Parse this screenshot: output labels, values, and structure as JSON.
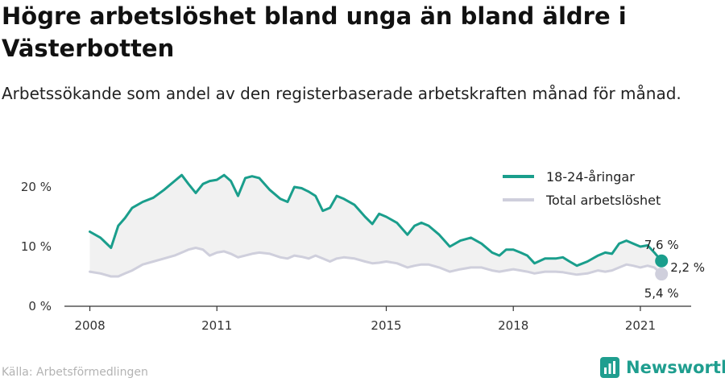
{
  "title": "Högre arbetslöshet bland unga än bland äldre i Västerbotten",
  "subtitle": "Arbetssökande som andel av den registerbaserade arbetskraften månad för månad.",
  "source": "Källa: Arbetsförmedlingen",
  "brand": "Newsworthy",
  "colors": {
    "youth": "#1a9e8c",
    "total": "#cfcfdc",
    "band": "#f1f1f1",
    "axis": "#333333",
    "brand": "#1f9e8f"
  },
  "chart_data": {
    "type": "line",
    "ylim": [
      0,
      25
    ],
    "yticks": [
      0,
      10,
      20
    ],
    "ytick_labels": [
      "0 %",
      "10 %",
      "20 %"
    ],
    "xticks": [
      2008,
      2011,
      2015,
      2018,
      2021
    ],
    "xtick_labels": [
      "2008",
      "2011",
      "2015",
      "2018",
      "2021"
    ],
    "xlim": [
      2007.4,
      2022.2
    ],
    "legend_position": "top-right",
    "x": [
      2008.0,
      2008.25,
      2008.5,
      2008.67,
      2008.83,
      2009.0,
      2009.25,
      2009.5,
      2009.75,
      2010.0,
      2010.17,
      2010.33,
      2010.5,
      2010.67,
      2010.83,
      2011.0,
      2011.17,
      2011.33,
      2011.5,
      2011.67,
      2011.83,
      2012.0,
      2012.25,
      2012.5,
      2012.67,
      2012.83,
      2013.0,
      2013.17,
      2013.33,
      2013.5,
      2013.67,
      2013.83,
      2014.0,
      2014.25,
      2014.5,
      2014.67,
      2014.83,
      2015.0,
      2015.25,
      2015.5,
      2015.67,
      2015.83,
      2016.0,
      2016.25,
      2016.5,
      2016.75,
      2017.0,
      2017.25,
      2017.5,
      2017.67,
      2017.83,
      2018.0,
      2018.17,
      2018.33,
      2018.5,
      2018.75,
      2019.0,
      2019.17,
      2019.33,
      2019.5,
      2019.75,
      2020.0,
      2020.17,
      2020.33,
      2020.5,
      2020.67,
      2020.83,
      2021.0,
      2021.17,
      2021.33,
      2021.5
    ],
    "series": [
      {
        "name": "18-24-åringar",
        "values": [
          12.5,
          11.5,
          9.8,
          13.5,
          14.8,
          16.5,
          17.5,
          18.2,
          19.5,
          21.0,
          22.0,
          20.5,
          19.0,
          20.5,
          21.0,
          21.2,
          22.0,
          21.0,
          18.5,
          21.5,
          21.8,
          21.5,
          19.5,
          18.0,
          17.5,
          20.0,
          19.8,
          19.2,
          18.5,
          16.0,
          16.5,
          18.5,
          18.0,
          17.0,
          15.0,
          13.8,
          15.5,
          15.0,
          14.0,
          12.0,
          13.5,
          14.0,
          13.5,
          12.0,
          10.0,
          11.0,
          11.5,
          10.5,
          9.0,
          8.5,
          9.5,
          9.5,
          9.0,
          8.5,
          7.2,
          8.0,
          8.0,
          8.2,
          7.5,
          6.8,
          7.5,
          8.5,
          9.0,
          8.8,
          10.5,
          11.0,
          10.5,
          10.0,
          10.2,
          9.0,
          7.6
        ]
      },
      {
        "name": "Total arbetslöshet",
        "values": [
          5.8,
          5.5,
          5.0,
          5.0,
          5.5,
          6.0,
          7.0,
          7.5,
          8.0,
          8.5,
          9.0,
          9.5,
          9.8,
          9.5,
          8.5,
          9.0,
          9.2,
          8.8,
          8.2,
          8.5,
          8.8,
          9.0,
          8.8,
          8.2,
          8.0,
          8.5,
          8.3,
          8.0,
          8.5,
          8.0,
          7.5,
          8.0,
          8.2,
          8.0,
          7.5,
          7.2,
          7.3,
          7.5,
          7.2,
          6.5,
          6.8,
          7.0,
          7.0,
          6.5,
          5.8,
          6.2,
          6.5,
          6.5,
          6.0,
          5.8,
          6.0,
          6.2,
          6.0,
          5.8,
          5.5,
          5.8,
          5.8,
          5.7,
          5.5,
          5.3,
          5.5,
          6.0,
          5.8,
          6.0,
          6.5,
          7.0,
          6.8,
          6.5,
          6.8,
          6.5,
          5.4
        ]
      }
    ],
    "end_labels": [
      "7,6 %",
      "2,2 %",
      "5,4 %"
    ]
  }
}
